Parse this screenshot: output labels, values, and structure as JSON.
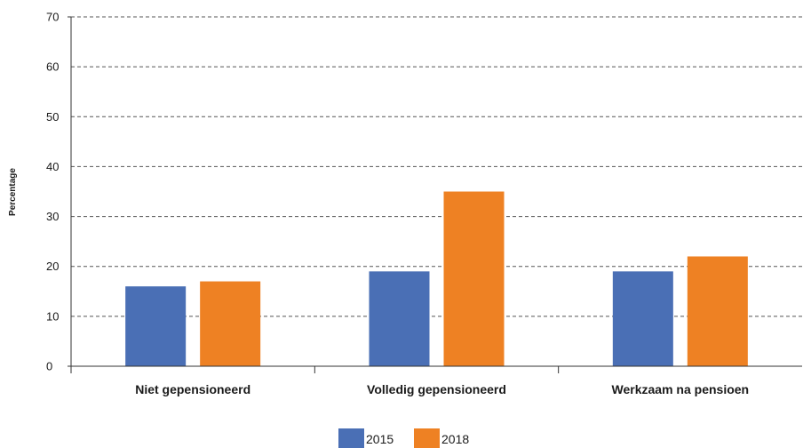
{
  "chart_data": {
    "type": "bar",
    "title": "",
    "xlabel": "",
    "ylabel": "Percentage",
    "ylim": [
      0,
      70
    ],
    "yticks": [
      0,
      10,
      20,
      30,
      40,
      50,
      60,
      70
    ],
    "grid": true,
    "legend_position": "bottom",
    "categories": [
      "Niet gepensioneerd",
      "Volledig gepensioneerd",
      "Werkzaam na pensioen"
    ],
    "series": [
      {
        "name": "2015",
        "color": "#4a6fb5",
        "values": [
          16,
          19,
          19
        ]
      },
      {
        "name": "2018",
        "color": "#ee8123",
        "values": [
          17,
          35,
          22
        ]
      }
    ]
  }
}
